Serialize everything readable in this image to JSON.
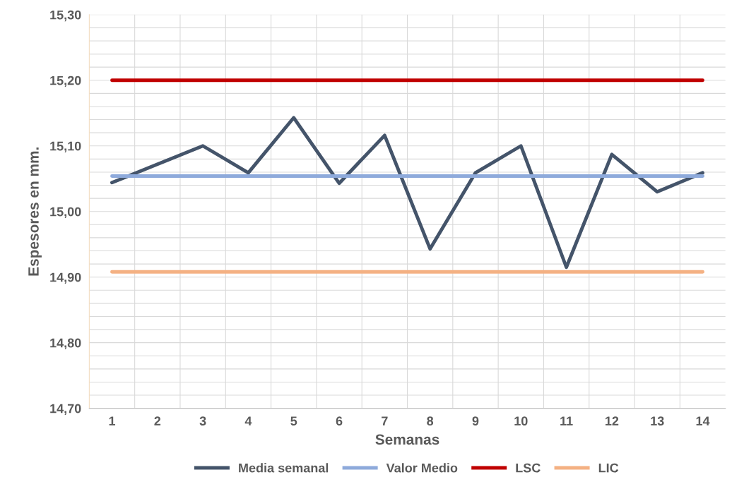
{
  "chart_data": {
    "type": "line",
    "xlabel": "Semanas",
    "ylabel": "Espesores en mm.",
    "categories": [
      "1",
      "2",
      "3",
      "4",
      "5",
      "6",
      "7",
      "8",
      "9",
      "10",
      "11",
      "12",
      "13",
      "14"
    ],
    "series": [
      {
        "name": "Media semanal",
        "color": "#44546a",
        "values": [
          15.044,
          15.072,
          15.1,
          15.059,
          15.143,
          15.043,
          15.116,
          14.943,
          15.059,
          15.1,
          14.915,
          15.087,
          15.03,
          15.059
        ]
      },
      {
        "name": "Valor Medio",
        "color": "#8eaadb",
        "values": [
          15.054,
          15.054,
          15.054,
          15.054,
          15.054,
          15.054,
          15.054,
          15.054,
          15.054,
          15.054,
          15.054,
          15.054,
          15.054,
          15.054
        ]
      },
      {
        "name": "LSC",
        "color": "#c00000",
        "values": [
          15.2,
          15.2,
          15.2,
          15.2,
          15.2,
          15.2,
          15.2,
          15.2,
          15.2,
          15.2,
          15.2,
          15.2,
          15.2,
          15.2
        ]
      },
      {
        "name": "LIC",
        "color": "#f4b183",
        "values": [
          14.908,
          14.908,
          14.908,
          14.908,
          14.908,
          14.908,
          14.908,
          14.908,
          14.908,
          14.908,
          14.908,
          14.908,
          14.908,
          14.908
        ]
      }
    ],
    "ylim": [
      14.7,
      15.3
    ],
    "yticks": [
      {
        "value": 14.7,
        "label": "14,70"
      },
      {
        "value": 14.72,
        "label": null
      },
      {
        "value": 14.74,
        "label": null
      },
      {
        "value": 14.76,
        "label": null
      },
      {
        "value": 14.78,
        "label": null
      },
      {
        "value": 14.8,
        "label": "14,80"
      },
      {
        "value": 14.82,
        "label": null
      },
      {
        "value": 14.84,
        "label": null
      },
      {
        "value": 14.86,
        "label": null
      },
      {
        "value": 14.88,
        "label": null
      },
      {
        "value": 14.9,
        "label": "14,90"
      },
      {
        "value": 14.92,
        "label": null
      },
      {
        "value": 14.94,
        "label": null
      },
      {
        "value": 14.96,
        "label": null
      },
      {
        "value": 14.98,
        "label": null
      },
      {
        "value": 15.0,
        "label": "15,00"
      },
      {
        "value": 15.02,
        "label": null
      },
      {
        "value": 15.04,
        "label": null
      },
      {
        "value": 15.06,
        "label": null
      },
      {
        "value": 15.08,
        "label": null
      },
      {
        "value": 15.1,
        "label": "15,10"
      },
      {
        "value": 15.12,
        "label": null
      },
      {
        "value": 15.14,
        "label": null
      },
      {
        "value": 15.16,
        "label": null
      },
      {
        "value": 15.18,
        "label": null
      },
      {
        "value": 15.2,
        "label": "15,20"
      },
      {
        "value": 15.22,
        "label": null
      },
      {
        "value": 15.24,
        "label": null
      },
      {
        "value": 15.26,
        "label": null
      },
      {
        "value": 15.28,
        "label": null
      },
      {
        "value": 15.3,
        "label": "15,30"
      }
    ],
    "grid": true,
    "legend": "bottom",
    "marker": "none",
    "line_style": "solid"
  }
}
